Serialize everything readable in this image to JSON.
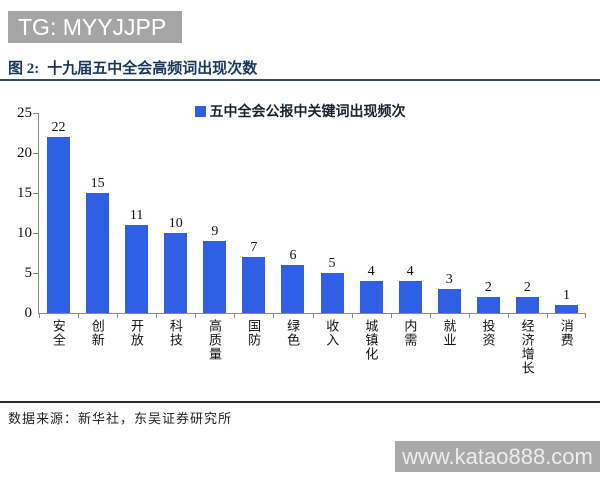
{
  "badge": {
    "text": "TG: MYYJJPP"
  },
  "figure": {
    "label": "图 2:",
    "title": "十九届五中全会高频词出现次数"
  },
  "chart_data": {
    "type": "bar",
    "title": "五中全会公报中关键词出现频次",
    "categories": [
      "安全",
      "创新",
      "开放",
      "科技",
      "高质量",
      "国防",
      "绿色",
      "收入",
      "城镇化",
      "内需",
      "就业",
      "投资",
      "经济增长",
      "消费"
    ],
    "values": [
      22,
      15,
      11,
      10,
      9,
      7,
      6,
      5,
      4,
      4,
      3,
      2,
      2,
      1
    ],
    "xlabel": "",
    "ylabel": "",
    "ylim": [
      0,
      25
    ],
    "y_ticks": [
      0,
      5,
      10,
      15,
      20,
      25
    ],
    "grid": false,
    "legend_position": "top-center",
    "bar_color": "#2F5FE3"
  },
  "footer": {
    "source": "数据来源：新华社，东吴证券研究所"
  },
  "watermark": {
    "text": "www.katao888.com"
  },
  "colors": {
    "bar": "#2F5FE3",
    "title_navy": "#17365D",
    "badge_bg": "#A5A5A5",
    "watermark_bg": "#A9A9A9",
    "axis_gray": "#8A8A8A"
  }
}
